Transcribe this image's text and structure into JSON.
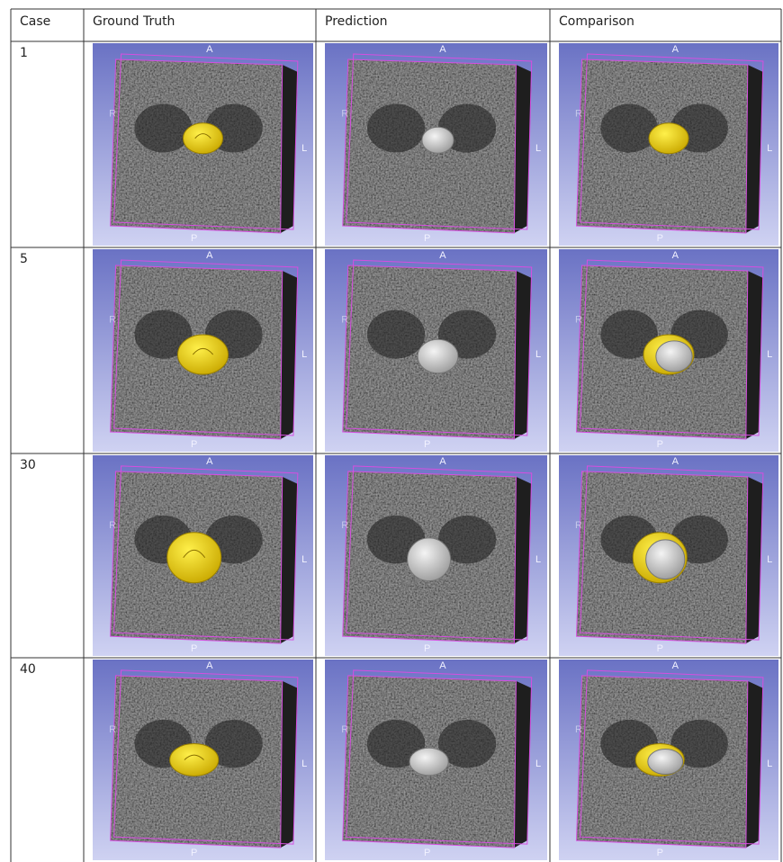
{
  "table": {
    "header": [
      "Case",
      "Ground Truth",
      "Prediction",
      "Comparison"
    ],
    "rows": [
      {
        "case": 1
      },
      {
        "case": 5
      },
      {
        "case": 30
      },
      {
        "case": 40
      }
    ]
  },
  "orientation": {
    "anterior": "A",
    "posterior": "P",
    "left": "L",
    "right": "R"
  }
}
